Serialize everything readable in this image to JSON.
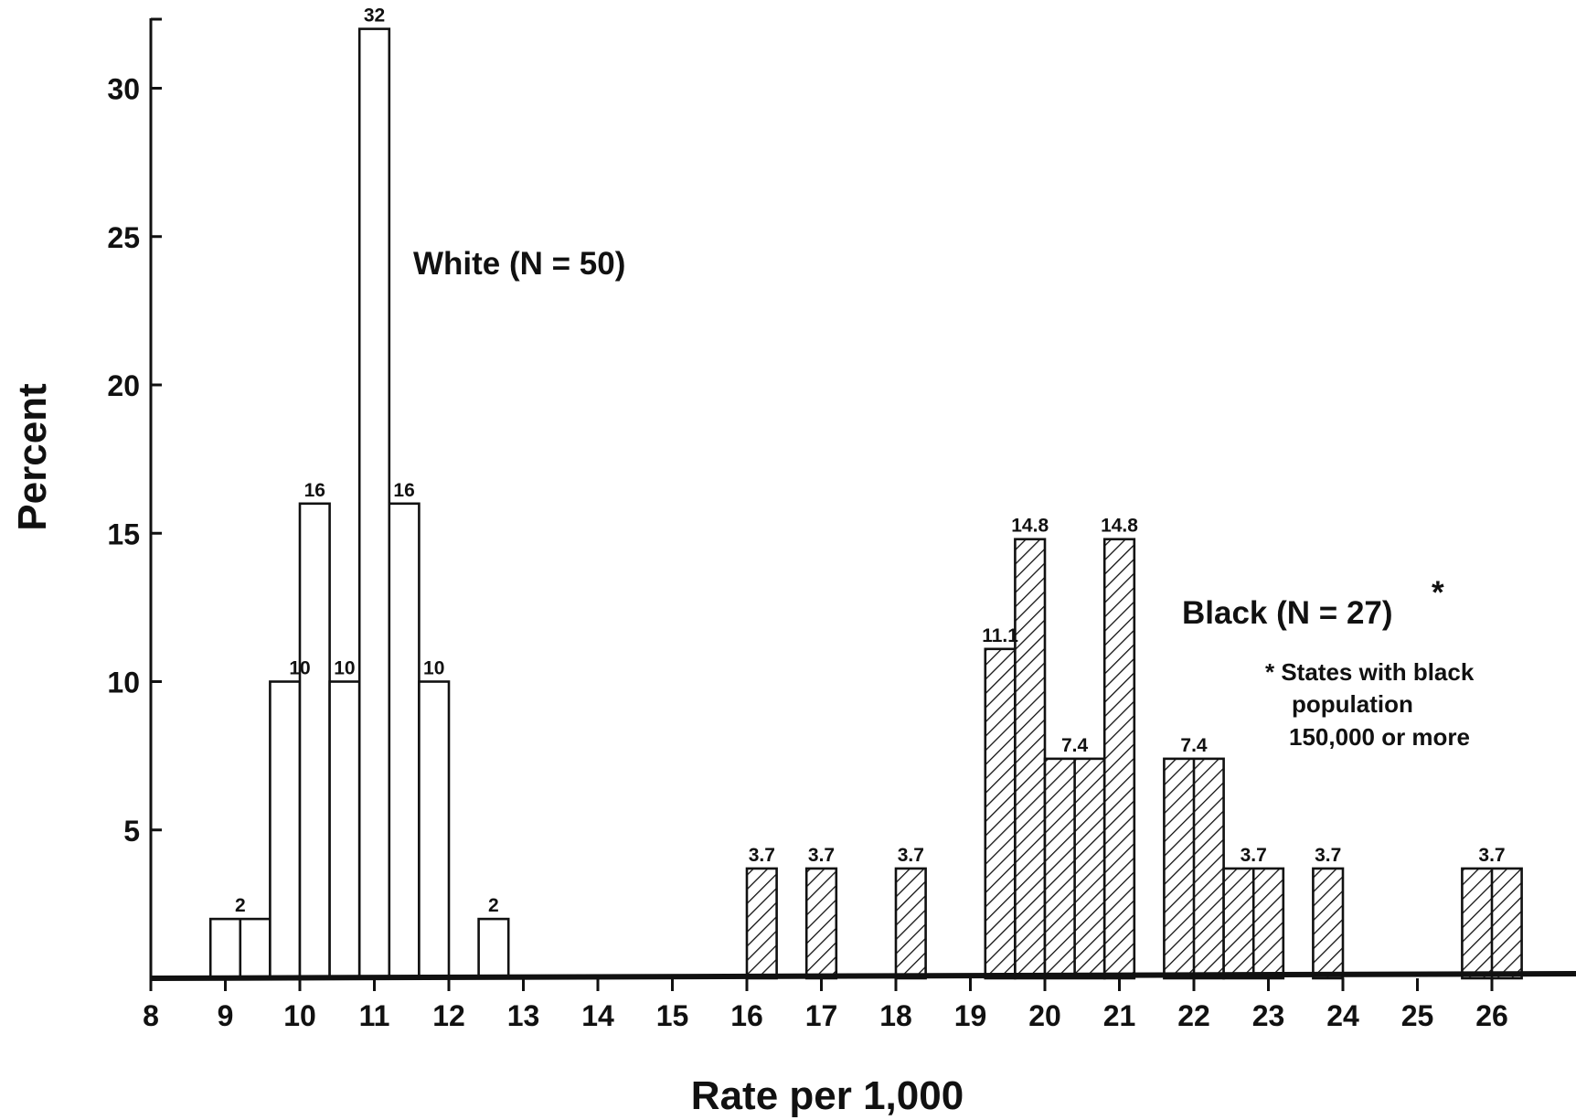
{
  "chart_data": {
    "type": "bar",
    "xlabel": "Rate per 1,000",
    "ylabel": "Percent",
    "xlim": [
      8,
      27
    ],
    "ylim": [
      0,
      32
    ],
    "x_ticks": [
      8,
      9,
      10,
      11,
      12,
      13,
      14,
      15,
      16,
      17,
      18,
      19,
      20,
      21,
      22,
      23,
      24,
      25,
      26
    ],
    "y_ticks": [
      5,
      10,
      15,
      20,
      25,
      30
    ],
    "grid": false,
    "series": [
      {
        "name": "White (N = 50)",
        "fill": "none",
        "bars": [
          {
            "x0": 8.8,
            "x1": 9.6,
            "value": 2,
            "label": "2"
          },
          {
            "x0": 9.6,
            "x1": 10.4,
            "value": 10,
            "label": "10"
          },
          {
            "x0": 10.0,
            "x1": 10.4,
            "value": 16,
            "label": "16"
          },
          {
            "x0": 10.4,
            "x1": 10.8,
            "value": 10,
            "label": "10"
          },
          {
            "x0": 10.8,
            "x1": 11.2,
            "value": 32,
            "label": "32"
          },
          {
            "x0": 11.2,
            "x1": 11.6,
            "value": 16,
            "label": "16"
          },
          {
            "x0": 11.6,
            "x1": 12.0,
            "value": 10,
            "label": "10"
          },
          {
            "x0": 12.4,
            "x1": 12.8,
            "value": 2,
            "label": "2"
          }
        ]
      },
      {
        "name": "Black (N = 27)",
        "name_marker": "*",
        "fill": "hatched",
        "bars": [
          {
            "x0": 16.0,
            "x1": 16.4,
            "value": 3.7,
            "label": "3.7"
          },
          {
            "x0": 16.8,
            "x1": 17.2,
            "value": 3.7,
            "label": "3.7"
          },
          {
            "x0": 18.0,
            "x1": 18.4,
            "value": 3.7,
            "label": "3.7"
          },
          {
            "x0": 19.2,
            "x1": 19.6,
            "value": 11.1,
            "label": "11.1"
          },
          {
            "x0": 19.6,
            "x1": 20.0,
            "value": 14.8,
            "label": "14.8"
          },
          {
            "x0": 20.0,
            "x1": 20.8,
            "value": 7.4,
            "label": "7.4"
          },
          {
            "x0": 20.8,
            "x1": 21.2,
            "value": 14.8,
            "label": "14.8"
          },
          {
            "x0": 21.6,
            "x1": 22.4,
            "value": 7.4,
            "label": "7.4"
          },
          {
            "x0": 22.4,
            "x1": 23.2,
            "value": 3.7,
            "label": "3.7"
          },
          {
            "x0": 23.6,
            "x1": 24.0,
            "value": 3.7,
            "label": "3.7"
          },
          {
            "x0": 25.6,
            "x1": 26.4,
            "value": 3.7,
            "label": "3.7"
          }
        ]
      }
    ],
    "annotations": {
      "white_label": "White (N = 50)",
      "black_label": "Black (N = 27)",
      "black_label_marker": "*",
      "note_lines": [
        "* States with black",
        "population",
        "150,000 or more"
      ]
    }
  }
}
